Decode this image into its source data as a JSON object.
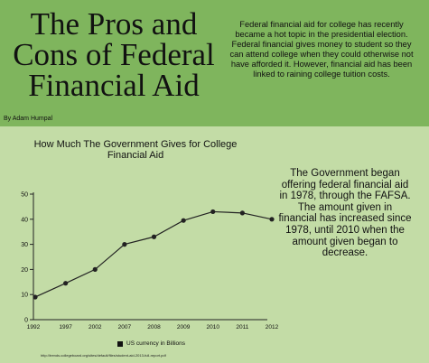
{
  "header": {
    "title": "The Pros and Cons of Federal Financial Aid",
    "byline": "By Adam Humpal",
    "intro": "Federal financial aid for college has recently became a hot topic in the presidential election. Federal financial gives money to student so they can attend college when they could otherwise not have afforded it. However, financial aid has been linked to raining college tuition costs."
  },
  "side_text": "The Government began offering federal financial aid in 1978, through the FAFSA. The amount given in financial has increased since 1978, until 2010 when the amount given began to decrease.",
  "colors": {
    "header_bg": "#7fb55d",
    "page_bg": "#c3dca6",
    "line": "#222222"
  },
  "chart_data": {
    "type": "line",
    "title": "How Much The Government Gives for College Financial Aid",
    "categories": [
      "1992",
      "1997",
      "2002",
      "2007",
      "2008",
      "2009",
      "2010",
      "2011",
      "2012"
    ],
    "series": [
      {
        "name": "US currency in Billions",
        "values": [
          9,
          14.5,
          20,
          30,
          33,
          39.5,
          43,
          42.5,
          40
        ]
      }
    ],
    "ylim": [
      0,
      50
    ],
    "yticks": [
      0,
      10,
      20,
      30,
      40,
      50
    ],
    "grid": false,
    "legend": "bottom"
  },
  "source": "http://trends.collegeboard.org/sites/default/files/student-aid-2013-full-report.pdf"
}
